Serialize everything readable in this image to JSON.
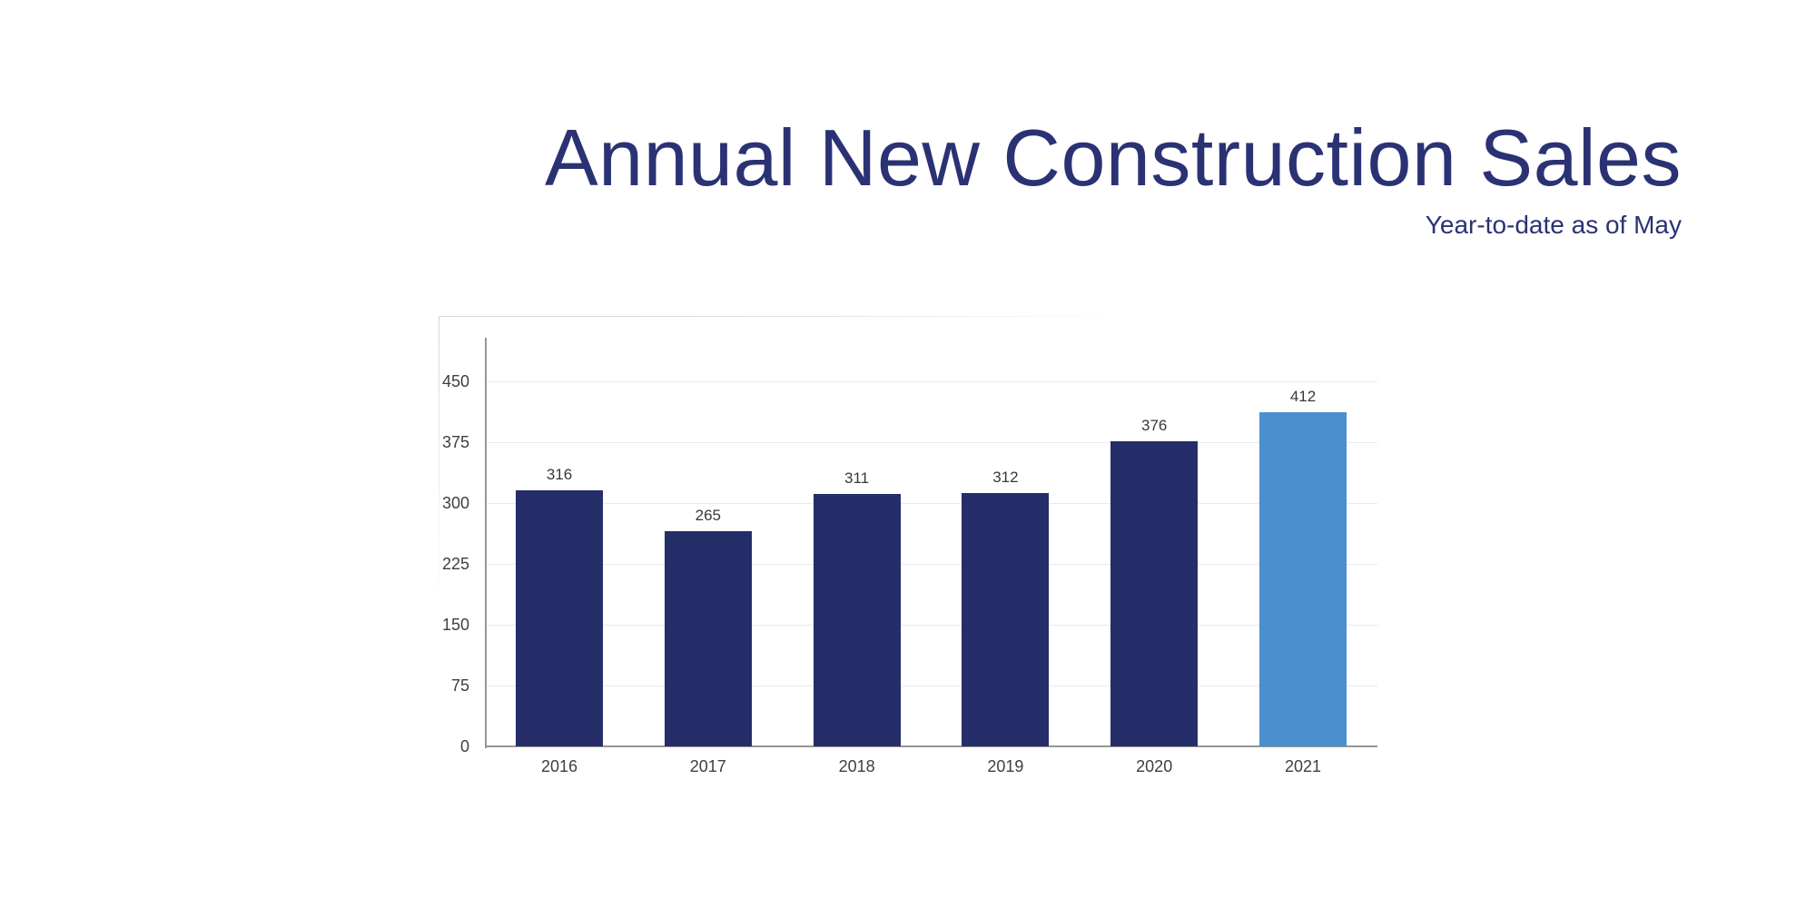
{
  "header": {
    "title": "Annual New Construction Sales",
    "subtitle": "Year-to-date as of May"
  },
  "colors": {
    "title_text": "#2b3273",
    "subtitle_text": "#2b3273",
    "bar_primary": "#252e69",
    "bar_highlight": "#4b90ce",
    "gridline": "#e7eaf0",
    "axis_line": "#969696",
    "tick_text": "#3f3f3f",
    "value_text": "#383838",
    "panel_border": "#dcdcdc"
  },
  "chart_data": {
    "type": "bar",
    "title": "Annual New Construction Sales",
    "subtitle": "Year-to-date as of May",
    "categories": [
      "2016",
      "2017",
      "2018",
      "2019",
      "2020",
      "2021"
    ],
    "values": [
      316,
      265,
      311,
      312,
      376,
      412
    ],
    "bar_colors": [
      "#252e69",
      "#252e69",
      "#252e69",
      "#252e69",
      "#252e69",
      "#4b90ce"
    ],
    "highlighted_category": "2021",
    "xlabel": "",
    "ylabel": "",
    "ylim": [
      0,
      450
    ],
    "yticks": [
      0,
      75,
      150,
      225,
      300,
      375,
      450
    ],
    "grid": "horizontal",
    "legend": "none",
    "value_labels_shown": true
  }
}
